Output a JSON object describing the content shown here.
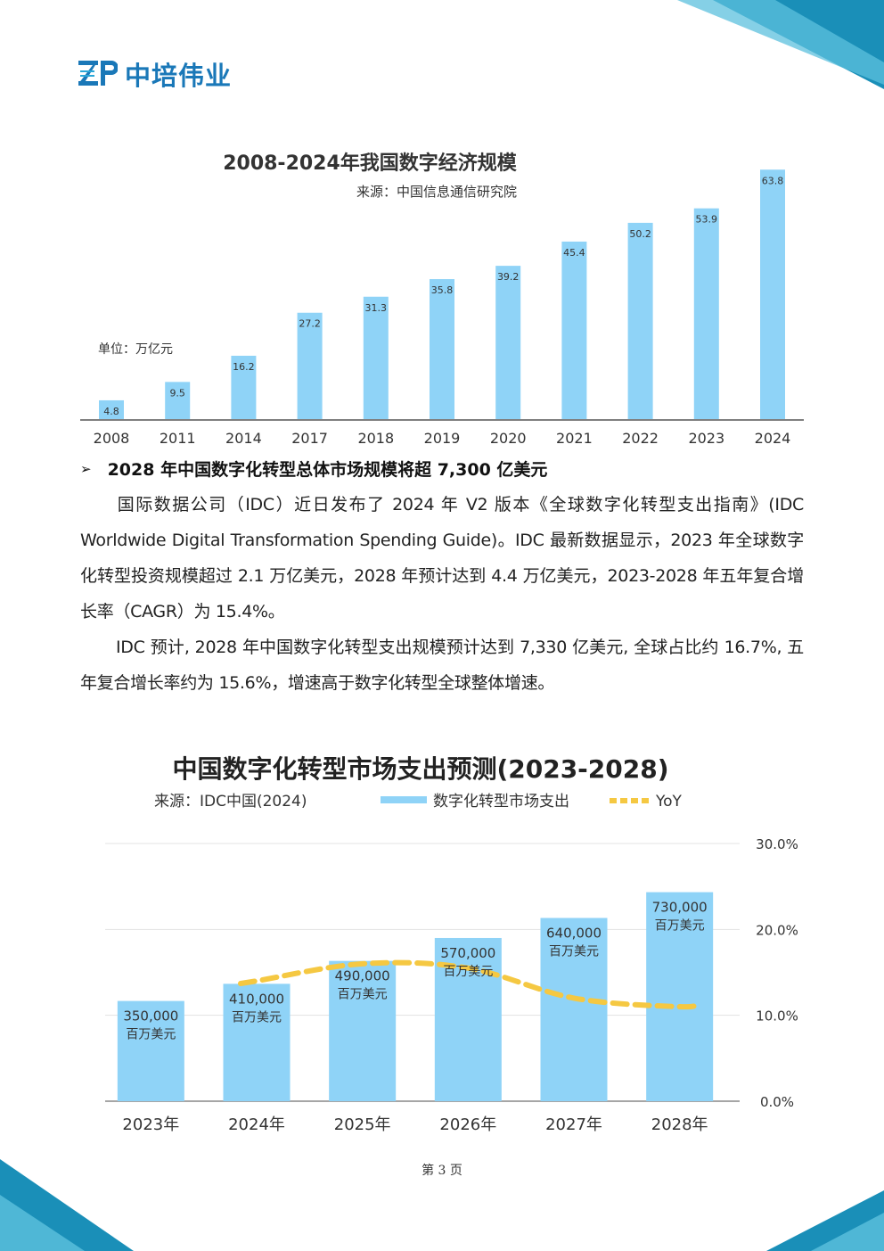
{
  "logo": {
    "text": "中培伟业",
    "colors": {
      "mark": "#1a78b8",
      "accent": "#2aa7d8"
    }
  },
  "chart1": {
    "chart_data": {
      "type": "bar",
      "title": "2008-2024年我国数字经济规模",
      "subtitle": "来源：中国信息通信研究院",
      "unit_label": "单位：万亿元",
      "categories": [
        "2008",
        "2011",
        "2014",
        "2017",
        "2018",
        "2019",
        "2020",
        "2021",
        "2022",
        "2023",
        "2024"
      ],
      "values": [
        4.8,
        9.5,
        16.2,
        27.2,
        31.3,
        35.8,
        39.2,
        45.4,
        50.2,
        53.9,
        63.8
      ],
      "value_labels": [
        "4.8",
        "9.5",
        "16.2",
        "27.2",
        "31.3",
        "35.8",
        "39.2",
        "45.4",
        "50.2",
        "53.9",
        "63.8"
      ],
      "ylim": [
        0,
        65
      ],
      "grid": false,
      "bar_color": "#8fd3f7"
    }
  },
  "section": {
    "bullet": "➢",
    "heading": "2028 年中国数字化转型总体市场规模将超 7,300 亿美元"
  },
  "paragraphs": {
    "p1": "国际数据公司（IDC）近日发布了 2024 年 V2 版本《全球数字化转型支出指南》(IDC Worldwide Digital Transformation Spending Guide)。IDC 最新数据显示，2023 年全球数字化转型投资规模超过 2.1 万亿美元，2028 年预计达到 4.4 万亿美元，2023-2028 年五年复合增长率（CAGR）为 15.4%。",
    "p2": "IDC 预计, 2028 年中国数字化转型支出规模预计达到 7,330 亿美元, 全球占比约 16.7%, 五年复合增长率约为 15.6%，增速高于数字化转型全球整体增速。"
  },
  "chart2": {
    "chart_data": {
      "type": "bar",
      "title": "中国数字化转型市场支出预测(2023-2028)",
      "subtitle": "来源：IDC中国(2024)",
      "categories": [
        "2023年",
        "2024年",
        "2025年",
        "2026年",
        "2027年",
        "2028年"
      ],
      "series": [
        {
          "name": "数字化转型市场支出",
          "type": "bar",
          "values": [
            350000,
            410000,
            490000,
            570000,
            640000,
            730000
          ],
          "value_labels": [
            "350,000",
            "410,000",
            "490,000",
            "570,000",
            "640,000",
            "730,000"
          ],
          "unit_label": "百万美元",
          "color": "#8fd3f7"
        },
        {
          "name": "YoY",
          "type": "line",
          "values": [
            null,
            14.0,
            16.0,
            15.5,
            12.0,
            11.0
          ],
          "color": "#f5c842",
          "style": "dashed"
        }
      ],
      "ylim_left": [
        0,
        900000
      ],
      "ylim_right": [
        0,
        30
      ],
      "right_ticks": [
        "30.0%",
        "20.0%",
        "10.0%",
        "0.0%"
      ],
      "right_tick_values": [
        30,
        20,
        10,
        0
      ],
      "grid": true,
      "legend": "top"
    }
  },
  "footer": {
    "page_label": "第 3 页"
  }
}
